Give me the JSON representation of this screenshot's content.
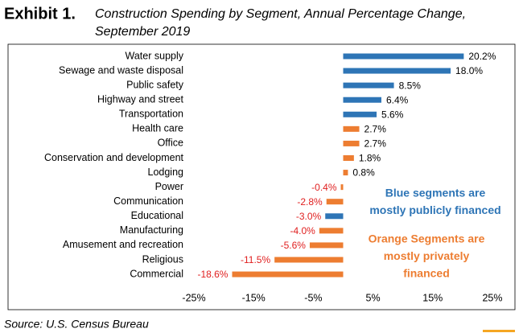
{
  "chart_data": {
    "type": "bar",
    "orientation": "horizontal",
    "title": "Exhibit 1.",
    "subtitle": [
      "Construction Spending by Segment, Annual Percentage Change,",
      "September 2019"
    ],
    "categories": [
      "Water supply",
      "Sewage and waste disposal",
      "Public safety",
      "Highway and street",
      "Transportation",
      "Health care",
      "Office",
      "Conservation and development",
      "Lodging",
      "Power",
      "Communication",
      "Educational",
      "Manufacturing",
      "Amusement and recreation",
      "Religious",
      "Commercial"
    ],
    "values": [
      20.2,
      18.0,
      8.5,
      6.4,
      5.6,
      2.7,
      2.7,
      1.8,
      0.8,
      -0.4,
      -2.8,
      -3.0,
      -4.0,
      -5.6,
      -11.5,
      -18.6
    ],
    "value_labels": [
      "20.2%",
      "18.0%",
      "8.5%",
      "6.4%",
      "5.6%",
      "2.7%",
      "2.7%",
      "1.8%",
      "0.8%",
      "-0.4%",
      "-2.8%",
      "-3.0%",
      "-4.0%",
      "-5.6%",
      "-11.5%",
      "-18.6%"
    ],
    "colors": [
      "#2e75b6",
      "#2e75b6",
      "#2e75b6",
      "#2e75b6",
      "#2e75b6",
      "#ed7d31",
      "#ed7d31",
      "#ed7d31",
      "#ed7d31",
      "#ed7d31",
      "#ed7d31",
      "#2e75b6",
      "#ed7d31",
      "#ed7d31",
      "#ed7d31",
      "#ed7d31"
    ],
    "xlim": [
      -25,
      25
    ],
    "xticks": [
      {
        "value": -25,
        "label": "-25%"
      },
      {
        "value": -15,
        "label": "-15%"
      },
      {
        "value": -5,
        "label": "-5%"
      },
      {
        "value": 5,
        "label": "5%"
      },
      {
        "value": 15,
        "label": "15%"
      },
      {
        "value": 25,
        "label": "25%"
      }
    ],
    "grid": false,
    "annotations": [
      {
        "lines": [
          "Blue segments are",
          "mostly publicly financed"
        ],
        "color": "#2e75b6"
      },
      {
        "lines": [
          "Orange Segments are",
          "mostly privately",
          "financed"
        ],
        "color": "#ed7d31"
      }
    ],
    "source": "Source: U.S. Census Bureau"
  }
}
